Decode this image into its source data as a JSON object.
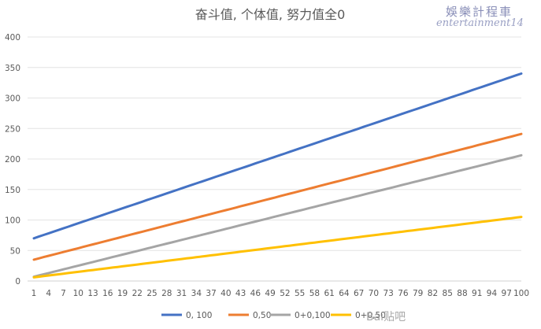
{
  "watermark": {
    "line1": "娛樂計程車",
    "line2": "entertainment14",
    "bottom": "Bai贴吧"
  },
  "chart_data": {
    "type": "line",
    "title": "奋斗值, 个体值, 努力值全0",
    "xlabel": "",
    "ylabel": "",
    "x_range": [
      1,
      100
    ],
    "x_ticks": [
      1,
      4,
      7,
      10,
      13,
      16,
      19,
      22,
      25,
      28,
      31,
      34,
      37,
      40,
      43,
      46,
      49,
      52,
      55,
      58,
      61,
      64,
      67,
      70,
      73,
      76,
      79,
      82,
      85,
      88,
      91,
      94,
      97,
      100
    ],
    "ylim": [
      0,
      400
    ],
    "y_ticks": [
      0,
      50,
      100,
      150,
      200,
      250,
      300,
      350,
      400
    ],
    "grid": "horizontal",
    "legend_position": "bottom",
    "series": [
      {
        "name": "0, 100",
        "color": "#4472C4",
        "start": 70,
        "end": 340
      },
      {
        "name": "0,50",
        "color": "#ED7D31",
        "start": 35,
        "end": 241
      },
      {
        "name": "0+0,100",
        "color": "#A5A5A5",
        "start": 7,
        "end": 206
      },
      {
        "name": "0+0,50",
        "color": "#FFC000",
        "start": 6,
        "end": 105
      }
    ]
  }
}
